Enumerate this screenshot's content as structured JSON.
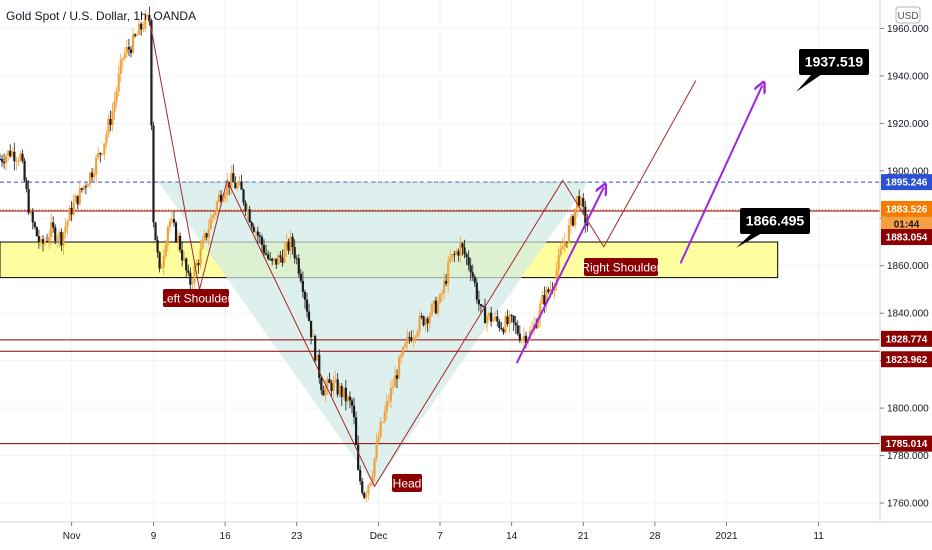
{
  "title": "Gold Spot / U.S. Dollar, 1h, OANDA",
  "currency": "USD",
  "chart_data": {
    "type": "candlestick",
    "y_range": [
      1752,
      1972
    ],
    "y_ticks": [
      1760,
      1780,
      1800,
      1820,
      1840,
      1860,
      1880,
      1900,
      1920,
      1940,
      1960
    ],
    "x_range": [
      0,
      86
    ],
    "x_ticks": [
      {
        "label": "Nov",
        "day": 7
      },
      {
        "label": "9",
        "day": 15
      },
      {
        "label": "16",
        "day": 22
      },
      {
        "label": "23",
        "day": 29
      },
      {
        "label": "Dec",
        "day": 37
      },
      {
        "label": "7",
        "day": 43
      },
      {
        "label": "14",
        "day": 50
      },
      {
        "label": "21",
        "day": 57
      },
      {
        "label": "28",
        "day": 64
      },
      {
        "label": "2021",
        "day": 71
      },
      {
        "label": "11",
        "day": 80
      }
    ],
    "price_path": [
      [
        0,
        1905
      ],
      [
        1,
        1908
      ],
      [
        2,
        1906
      ],
      [
        3,
        1880
      ],
      [
        4,
        1868
      ],
      [
        5,
        1875
      ],
      [
        6,
        1872
      ],
      [
        7,
        1884
      ],
      [
        8,
        1892
      ],
      [
        9,
        1900
      ],
      [
        10,
        1910
      ],
      [
        11,
        1925
      ],
      [
        12,
        1948
      ],
      [
        13,
        1954
      ],
      [
        14,
        1962
      ],
      [
        14.6,
        1964
      ],
      [
        15,
        1880
      ],
      [
        15.6,
        1856
      ],
      [
        16.5,
        1880
      ],
      [
        17.5,
        1870
      ],
      [
        18.5,
        1852
      ],
      [
        19.5,
        1864
      ],
      [
        20.5,
        1878
      ],
      [
        21.5,
        1890
      ],
      [
        22.5,
        1896
      ],
      [
        23.5,
        1892
      ],
      [
        24.5,
        1880
      ],
      [
        25.5,
        1870
      ],
      [
        26.5,
        1860
      ],
      [
        27.5,
        1864
      ],
      [
        28.5,
        1870
      ],
      [
        29.5,
        1855
      ],
      [
        30.5,
        1830
      ],
      [
        31.5,
        1808
      ],
      [
        32.5,
        1810
      ],
      [
        33.5,
        1806
      ],
      [
        34.5,
        1800
      ],
      [
        35,
        1772
      ],
      [
        35.6,
        1764
      ],
      [
        36.3,
        1772
      ],
      [
        37,
        1788
      ],
      [
        38,
        1804
      ],
      [
        39,
        1818
      ],
      [
        40,
        1830
      ],
      [
        41,
        1836
      ],
      [
        42,
        1840
      ],
      [
        43,
        1845
      ],
      [
        44,
        1862
      ],
      [
        45,
        1868
      ],
      [
        46,
        1860
      ],
      [
        47,
        1840
      ],
      [
        48,
        1838
      ],
      [
        49,
        1835
      ],
      [
        50,
        1836
      ],
      [
        51,
        1830
      ],
      [
        52,
        1832
      ],
      [
        53,
        1845
      ],
      [
        54,
        1852
      ],
      [
        55,
        1868
      ],
      [
        56,
        1880
      ],
      [
        56.5,
        1890
      ],
      [
        57,
        1882
      ],
      [
        57.5,
        1876
      ]
    ],
    "price_lines": [
      {
        "value": 1895.246,
        "label": "1895.246",
        "color": "#2b50d6",
        "style": "dashed"
      },
      {
        "value": 1883.526,
        "label": "1883.526",
        "color": "#f57c00",
        "style": "dotted"
      },
      {
        "value": 1883.054,
        "label": "1883.054",
        "color": "#8b0000",
        "style": "solid"
      },
      {
        "value": 1828.774,
        "label": "1828.774",
        "color": "#8b0000",
        "style": "solid"
      },
      {
        "value": 1823.962,
        "label": "1823.962",
        "color": "#8b0000",
        "style": "solid"
      },
      {
        "value": 1785.014,
        "label": "1785.014",
        "color": "#8b0000",
        "style": "solid"
      }
    ],
    "countdown": "01:44",
    "support_zone": {
      "low": 1855,
      "high": 1870,
      "from_day": 0,
      "to_day": 76
    },
    "annotations": {
      "left_shoulder": "Left Shoulder",
      "head": "Head",
      "right_shoulder": "Right Shoulder",
      "target_high": "1937.519",
      "target_mid": "1866.495"
    }
  }
}
